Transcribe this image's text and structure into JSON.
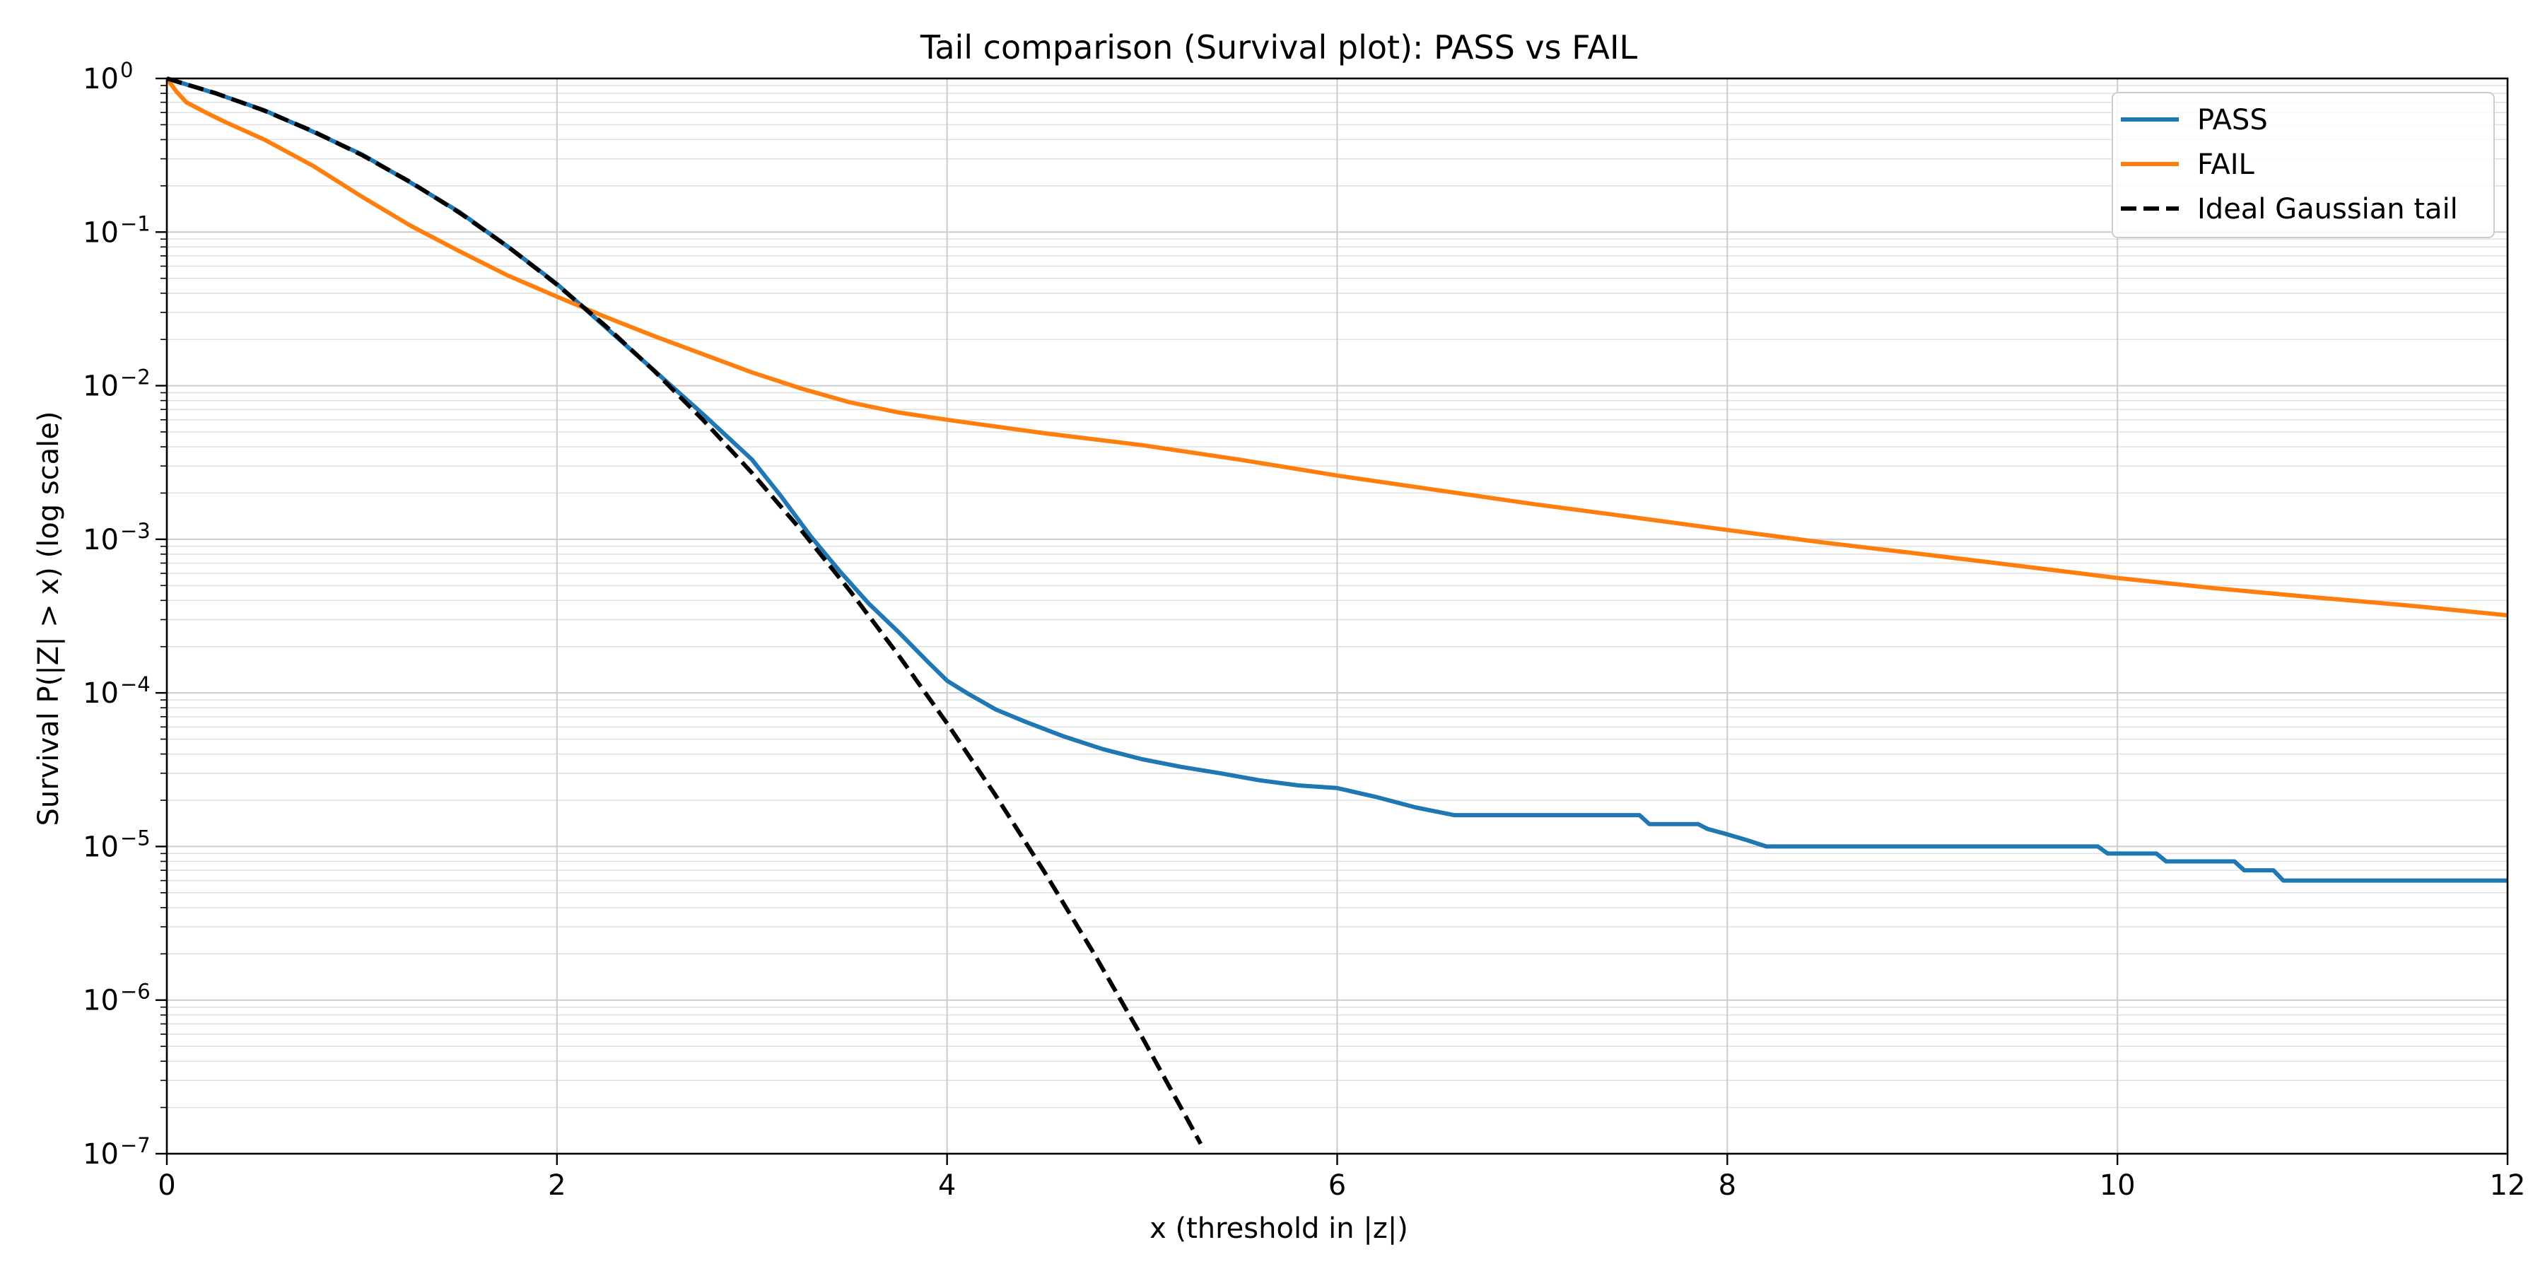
{
  "chart_data": {
    "type": "line",
    "title": "Tail comparison (Survival plot): PASS vs FAIL",
    "xlabel": "x  (threshold in |z|)",
    "ylabel": "Survival P(|Z| > x)  (log scale)",
    "xlim": [
      0,
      12
    ],
    "ylim": [
      1e-07,
      1
    ],
    "yscale": "log",
    "grid": true,
    "legend_position": "top-right",
    "x_ticks": [
      {
        "value": 0,
        "label": "0"
      },
      {
        "value": 2,
        "label": "2"
      },
      {
        "value": 4,
        "label": "4"
      },
      {
        "value": 6,
        "label": "6"
      },
      {
        "value": 8,
        "label": "8"
      },
      {
        "value": 10,
        "label": "10"
      },
      {
        "value": 12,
        "label": "12"
      }
    ],
    "y_ticks": [
      {
        "value": 1,
        "base": "10",
        "exp": "0"
      },
      {
        "value": 0.1,
        "base": "10",
        "exp": "−1"
      },
      {
        "value": 0.01,
        "base": "10",
        "exp": "−2"
      },
      {
        "value": 0.001,
        "base": "10",
        "exp": "−3"
      },
      {
        "value": 0.0001,
        "base": "10",
        "exp": "−4"
      },
      {
        "value": 1e-05,
        "base": "10",
        "exp": "−5"
      },
      {
        "value": 1e-06,
        "base": "10",
        "exp": "−6"
      },
      {
        "value": 1e-07,
        "base": "10",
        "exp": "−7"
      }
    ],
    "series": [
      {
        "name": "PASS",
        "color": "#1f77b4",
        "style": "solid",
        "x": [
          0,
          0.25,
          0.5,
          0.75,
          1.0,
          1.25,
          1.5,
          1.75,
          2.0,
          2.25,
          2.5,
          2.75,
          3.0,
          3.15,
          3.3,
          3.45,
          3.6,
          3.75,
          3.9,
          4.0,
          4.1,
          4.25,
          4.4,
          4.6,
          4.8,
          5.0,
          5.2,
          5.4,
          5.6,
          5.8,
          6.0,
          6.2,
          6.4,
          6.6,
          6.65,
          7.0,
          7.55,
          7.6,
          7.85,
          7.9,
          8.0,
          8.1,
          8.2,
          9.0,
          9.5,
          9.9,
          9.95,
          10.2,
          10.25,
          10.6,
          10.65,
          10.8,
          10.85,
          12.0
        ],
        "y": [
          1,
          0.8,
          0.62,
          0.45,
          0.32,
          0.21,
          0.135,
          0.08,
          0.046,
          0.024,
          0.0125,
          0.0065,
          0.0033,
          0.0019,
          0.00105,
          0.00062,
          0.00038,
          0.00025,
          0.00016,
          0.00012,
          0.0001,
          7.8e-05,
          6.5e-05,
          5.2e-05,
          4.3e-05,
          3.7e-05,
          3.3e-05,
          3e-05,
          2.7e-05,
          2.5e-05,
          2.4e-05,
          2.1e-05,
          1.8e-05,
          1.6e-05,
          1.6e-05,
          1.6e-05,
          1.6e-05,
          1.4e-05,
          1.4e-05,
          1.3e-05,
          1.2e-05,
          1.1e-05,
          1e-05,
          1e-05,
          1e-05,
          1e-05,
          9e-06,
          9e-06,
          8e-06,
          8e-06,
          7e-06,
          7e-06,
          6e-06,
          6e-06
        ]
      },
      {
        "name": "FAIL",
        "color": "#ff7f0e",
        "style": "solid",
        "x": [
          0,
          0.05,
          0.1,
          0.2,
          0.3,
          0.5,
          0.75,
          1.0,
          1.25,
          1.5,
          1.75,
          2.0,
          2.25,
          2.5,
          2.75,
          3.0,
          3.25,
          3.5,
          3.75,
          4.0,
          4.5,
          5.0,
          5.5,
          6.0,
          6.5,
          7.0,
          7.5,
          8.0,
          8.5,
          9.0,
          9.5,
          10.0,
          10.5,
          11.0,
          11.5,
          12.0
        ],
        "y": [
          1,
          0.82,
          0.7,
          0.6,
          0.52,
          0.4,
          0.27,
          0.17,
          0.11,
          0.075,
          0.052,
          0.038,
          0.028,
          0.021,
          0.016,
          0.0122,
          0.0096,
          0.0078,
          0.0067,
          0.006,
          0.0049,
          0.0041,
          0.0033,
          0.0026,
          0.0021,
          0.0017,
          0.0014,
          0.00115,
          0.00095,
          0.0008,
          0.00067,
          0.00056,
          0.00048,
          0.00042,
          0.00037,
          0.00032
        ]
      },
      {
        "name": "Ideal Gaussian tail",
        "color": "#000000",
        "style": "dashed",
        "x": [
          0,
          0.25,
          0.5,
          0.75,
          1.0,
          1.25,
          1.5,
          1.75,
          2.0,
          2.25,
          2.5,
          2.75,
          3.0,
          3.25,
          3.5,
          3.75,
          4.0,
          4.25,
          4.5,
          4.75,
          5.0,
          5.25,
          5.3
        ],
        "y": [
          1,
          0.8026,
          0.6171,
          0.4533,
          0.3173,
          0.2113,
          0.1336,
          0.0801,
          0.0455,
          0.02445,
          0.01242,
          0.00596,
          0.0027,
          0.001154,
          0.000465,
          0.0001768,
          6.33e-05,
          2.14e-05,
          6.8e-06,
          2.04e-06,
          5.73e-07,
          1.52e-07,
          1.16e-07
        ]
      }
    ]
  }
}
